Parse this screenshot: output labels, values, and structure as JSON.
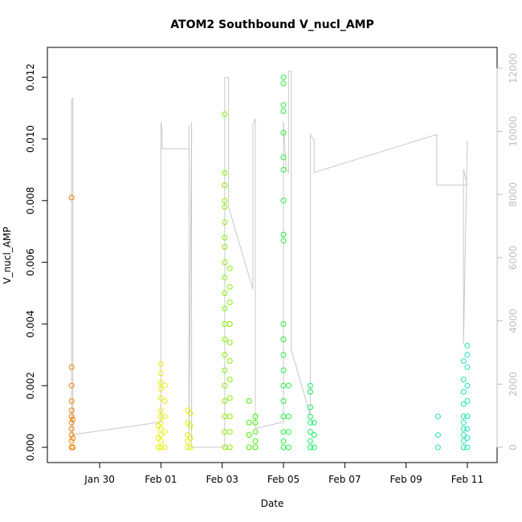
{
  "chart_data": {
    "type": "scatter",
    "title": "ATOM2 Southbound V_nucl_AMP",
    "xlabel": "Date",
    "ylabel": "V_nucl_AMP",
    "x_ticks": [
      "Jan 30",
      "Feb 01",
      "Feb 03",
      "Feb 05",
      "Feb 07",
      "Feb 09",
      "Feb 11"
    ],
    "y_ticks": [
      "0.000",
      "0.002",
      "0.004",
      "0.006",
      "0.008",
      "0.010",
      "0.012"
    ],
    "y2_ticks": [
      "0",
      "2000",
      "4000",
      "6000",
      "8000",
      "10000",
      "12000"
    ],
    "xlim": [
      "2023-01-28T19:00",
      "2023-02-11T12:00"
    ],
    "ylim": [
      0.0,
      0.0125
    ],
    "y2lim": [
      0,
      12200
    ],
    "grid": false,
    "series": [
      {
        "color": "#f08000",
        "points": [
          [
            "2023-01-29T02:00",
            0.0081
          ],
          [
            "2023-01-29T02:00",
            0.0026
          ],
          [
            "2023-01-29T02:00",
            0.002
          ],
          [
            "2023-01-29T02:00",
            0.0015
          ],
          [
            "2023-01-29T02:00",
            0.0012
          ],
          [
            "2023-01-29T02:00",
            0.001
          ],
          [
            "2023-01-29T02:00",
            0.0008
          ],
          [
            "2023-01-29T02:00",
            0.0006
          ],
          [
            "2023-01-29T02:00",
            0.0004
          ],
          [
            "2023-01-29T02:00",
            0.0002
          ],
          [
            "2023-01-29T02:00",
            0.0
          ],
          [
            "2023-01-29T03:00",
            0.0
          ],
          [
            "2023-01-29T03:00",
            0.0009
          ],
          [
            "2023-01-29T03:00",
            0.0003
          ]
        ]
      },
      {
        "color": "#e8f000",
        "points": [
          [
            "2023-02-01T00:00",
            0.0027
          ],
          [
            "2023-02-01T00:00",
            0.0024
          ],
          [
            "2023-02-01T00:00",
            0.0021
          ],
          [
            "2023-02-01T00:00",
            0.0019
          ],
          [
            "2023-02-01T00:00",
            0.0016
          ],
          [
            "2023-02-01T00:00",
            0.0012
          ],
          [
            "2023-02-01T00:00",
            0.001
          ],
          [
            "2023-02-01T00:00",
            0.0008
          ],
          [
            "2023-02-01T00:00",
            0.0006
          ],
          [
            "2023-02-01T00:00",
            0.0004
          ],
          [
            "2023-02-01T00:00",
            0.0002
          ],
          [
            "2023-02-01T00:00",
            0.0
          ],
          [
            "2023-02-01T03:00",
            0.002
          ],
          [
            "2023-02-01T03:00",
            0.0015
          ],
          [
            "2023-02-01T03:00",
            0.001
          ],
          [
            "2023-02-01T03:00",
            0.0005
          ],
          [
            "2023-02-01T03:00",
            0.0
          ],
          [
            "2023-01-31T22:00",
            0.0007
          ],
          [
            "2023-01-31T22:00",
            0.0003
          ],
          [
            "2023-01-31T22:00",
            0.0
          ]
        ]
      },
      {
        "color": "#d8f000",
        "points": [
          [
            "2023-02-01T21:00",
            0.0012
          ],
          [
            "2023-02-01T21:00",
            0.0008
          ],
          [
            "2023-02-01T21:00",
            0.0004
          ],
          [
            "2023-02-01T21:00",
            0.0002
          ],
          [
            "2023-02-01T21:00",
            0.0
          ],
          [
            "2023-02-01T23:00",
            0.0011
          ],
          [
            "2023-02-01T23:00",
            0.0007
          ],
          [
            "2023-02-01T23:00",
            0.0003
          ],
          [
            "2023-02-01T23:00",
            0.0
          ]
        ]
      },
      {
        "color": "#80f000",
        "points": [
          [
            "2023-02-03T02:00",
            0.0108
          ],
          [
            "2023-02-03T02:00",
            0.0089
          ],
          [
            "2023-02-03T02:00",
            0.0085
          ],
          [
            "2023-02-03T02:00",
            0.008
          ],
          [
            "2023-02-03T02:00",
            0.0078
          ],
          [
            "2023-02-03T02:00",
            0.0073
          ],
          [
            "2023-02-03T02:00",
            0.0068
          ],
          [
            "2023-02-03T02:00",
            0.0065
          ],
          [
            "2023-02-03T02:00",
            0.006
          ],
          [
            "2023-02-03T02:00",
            0.0055
          ],
          [
            "2023-02-03T02:00",
            0.005
          ],
          [
            "2023-02-03T02:00",
            0.0045
          ],
          [
            "2023-02-03T02:00",
            0.004
          ],
          [
            "2023-02-03T02:00",
            0.0035
          ],
          [
            "2023-02-03T02:00",
            0.003
          ],
          [
            "2023-02-03T02:00",
            0.0025
          ],
          [
            "2023-02-03T02:00",
            0.002
          ],
          [
            "2023-02-03T02:00",
            0.0015
          ],
          [
            "2023-02-03T02:00",
            0.001
          ],
          [
            "2023-02-03T02:00",
            0.0005
          ],
          [
            "2023-02-03T02:00",
            0.0
          ],
          [
            "2023-02-03T06:00",
            0.0058
          ],
          [
            "2023-02-03T06:00",
            0.0052
          ],
          [
            "2023-02-03T06:00",
            0.0047
          ],
          [
            "2023-02-03T06:00",
            0.004
          ],
          [
            "2023-02-03T06:00",
            0.0034
          ],
          [
            "2023-02-03T06:00",
            0.0028
          ],
          [
            "2023-02-03T06:00",
            0.0022
          ],
          [
            "2023-02-03T06:00",
            0.0016
          ],
          [
            "2023-02-03T06:00",
            0.001
          ],
          [
            "2023-02-03T06:00",
            0.0005
          ],
          [
            "2023-02-03T06:00",
            0.0
          ]
        ]
      },
      {
        "color": "#40f000",
        "points": [
          [
            "2023-02-03T21:00",
            0.0015
          ],
          [
            "2023-02-03T21:00",
            0.0008
          ],
          [
            "2023-02-03T21:00",
            0.0004
          ],
          [
            "2023-02-03T21:00",
            0.0
          ],
          [
            "2023-02-04T02:00",
            0.001
          ],
          [
            "2023-02-04T02:00",
            0.0008
          ],
          [
            "2023-02-04T02:00",
            0.0005
          ],
          [
            "2023-02-04T02:00",
            0.0002
          ],
          [
            "2023-02-04T02:00",
            0.0
          ]
        ]
      },
      {
        "color": "#20f040",
        "points": [
          [
            "2023-02-05T00:00",
            0.012
          ],
          [
            "2023-02-05T00:00",
            0.0118
          ],
          [
            "2023-02-05T00:00",
            0.0111
          ],
          [
            "2023-02-05T00:00",
            0.0109
          ],
          [
            "2023-02-05T00:00",
            0.0102
          ],
          [
            "2023-02-05T00:00",
            0.0094
          ],
          [
            "2023-02-05T00:00",
            0.009
          ],
          [
            "2023-02-05T00:00",
            0.008
          ],
          [
            "2023-02-05T00:00",
            0.0069
          ],
          [
            "2023-02-05T00:00",
            0.0067
          ],
          [
            "2023-02-05T00:00",
            0.004
          ],
          [
            "2023-02-05T00:00",
            0.0035
          ],
          [
            "2023-02-05T00:00",
            0.003
          ],
          [
            "2023-02-05T00:00",
            0.0025
          ],
          [
            "2023-02-05T00:00",
            0.002
          ],
          [
            "2023-02-05T00:00",
            0.0015
          ],
          [
            "2023-02-05T00:00",
            0.001
          ],
          [
            "2023-02-05T00:00",
            0.0005
          ],
          [
            "2023-02-05T00:00",
            0.0002
          ],
          [
            "2023-02-05T00:00",
            0.0
          ],
          [
            "2023-02-05T04:00",
            0.002
          ],
          [
            "2023-02-05T04:00",
            0.001
          ],
          [
            "2023-02-05T04:00",
            0.0005
          ],
          [
            "2023-02-05T04:00",
            0.0
          ]
        ]
      },
      {
        "color": "#10f060",
        "points": [
          [
            "2023-02-05T21:00",
            0.002
          ],
          [
            "2023-02-05T21:00",
            0.0018
          ],
          [
            "2023-02-05T21:00",
            0.0013
          ],
          [
            "2023-02-05T21:00",
            0.001
          ],
          [
            "2023-02-05T21:00",
            0.0008
          ],
          [
            "2023-02-05T21:00",
            0.0005
          ],
          [
            "2023-02-05T21:00",
            0.0002
          ],
          [
            "2023-02-05T21:00",
            0.0
          ],
          [
            "2023-02-06T00:00",
            0.0008
          ],
          [
            "2023-02-06T00:00",
            0.0004
          ],
          [
            "2023-02-06T00:00",
            0.0
          ]
        ]
      },
      {
        "color": "#20e0b0",
        "points": [
          [
            "2023-02-10T01:00",
            0.001
          ],
          [
            "2023-02-10T01:00",
            0.0004
          ],
          [
            "2023-02-10T01:00",
            0.0
          ],
          [
            "2023-02-10T21:00",
            0.0028
          ],
          [
            "2023-02-10T21:00",
            0.0022
          ],
          [
            "2023-02-10T21:00",
            0.0018
          ],
          [
            "2023-02-10T21:00",
            0.0014
          ],
          [
            "2023-02-10T21:00",
            0.001
          ],
          [
            "2023-02-10T21:00",
            0.0008
          ],
          [
            "2023-02-10T21:00",
            0.0006
          ],
          [
            "2023-02-10T21:00",
            0.0004
          ],
          [
            "2023-02-10T21:00",
            0.0002
          ],
          [
            "2023-02-10T21:00",
            0.0
          ],
          [
            "2023-02-11T00:00",
            0.0033
          ],
          [
            "2023-02-11T00:00",
            0.003
          ],
          [
            "2023-02-11T00:00",
            0.0026
          ],
          [
            "2023-02-11T00:00",
            0.002
          ],
          [
            "2023-02-11T00:00",
            0.0015
          ],
          [
            "2023-02-11T00:00",
            0.001
          ],
          [
            "2023-02-11T00:00",
            0.0006
          ],
          [
            "2023-02-11T00:00",
            0.0003
          ],
          [
            "2023-02-11T00:00",
            0.0
          ]
        ]
      }
    ],
    "secondary_trace": {
      "color": "#c8c8c8",
      "points": [
        [
          "2023-01-29T02:00",
          400
        ],
        [
          "2023-01-29T02:00",
          11000
        ],
        [
          "2023-01-29T03:00",
          11050
        ],
        [
          "2023-01-29T03:00",
          400
        ],
        [
          "2023-02-01T00:00",
          800
        ],
        [
          "2023-02-01T00:00",
          10300
        ],
        [
          "2023-02-01T01:00",
          10000
        ],
        [
          "2023-02-01T01:00",
          9450
        ],
        [
          "2023-02-01T22:00",
          9450
        ],
        [
          "2023-02-01T22:00",
          10200
        ],
        [
          "2023-02-01T22:00",
          400
        ],
        [
          "2023-02-02T00:00",
          10300
        ],
        [
          "2023-02-02T00:00",
          0
        ],
        [
          "2023-02-03T02:00",
          0
        ],
        [
          "2023-02-03T02:00",
          11700
        ],
        [
          "2023-02-03T05:00",
          11700
        ],
        [
          "2023-02-03T05:00",
          7600
        ],
        [
          "2023-02-04T00:00",
          5000
        ],
        [
          "2023-02-04T00:00",
          10200
        ],
        [
          "2023-02-04T02:00",
          10400
        ],
        [
          "2023-02-04T02:00",
          600
        ],
        [
          "2023-02-05T00:00",
          800
        ],
        [
          "2023-02-05T00:00",
          10300
        ],
        [
          "2023-02-05T02:00",
          8800
        ],
        [
          "2023-02-05T04:00",
          8700
        ],
        [
          "2023-02-05T04:00",
          11900
        ],
        [
          "2023-02-05T06:00",
          11900
        ],
        [
          "2023-02-05T06:00",
          3100
        ],
        [
          "2023-02-05T21:00",
          1000
        ],
        [
          "2023-02-05T21:00",
          9900
        ],
        [
          "2023-02-06T00:00",
          9700
        ],
        [
          "2023-02-06T00:00",
          8700
        ],
        [
          "2023-02-10T00:00",
          9900
        ],
        [
          "2023-02-10T00:00",
          8300
        ],
        [
          "2023-02-11T00:00",
          8300
        ],
        [
          "2023-02-10T21:00",
          8800
        ],
        [
          "2023-02-10T21:00",
          3250
        ],
        [
          "2023-02-11T00:00",
          9700
        ]
      ]
    }
  }
}
